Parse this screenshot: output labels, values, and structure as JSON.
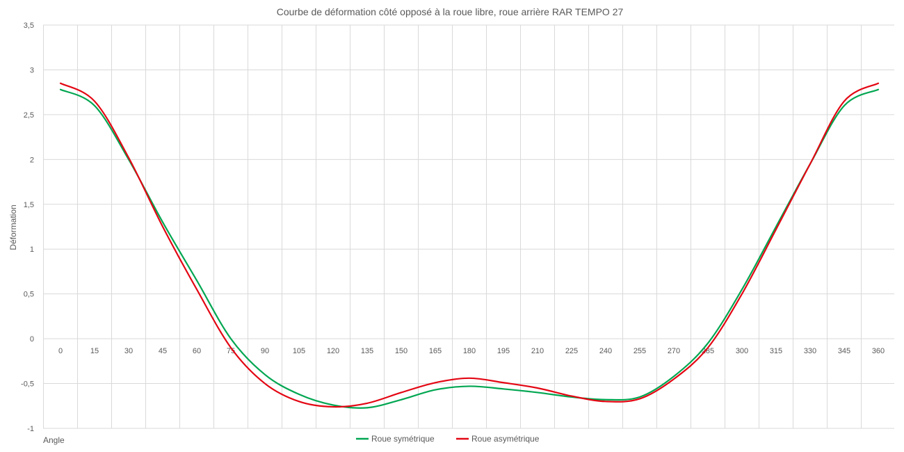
{
  "chart_data": {
    "type": "line",
    "title": "Courbe de déformation côté opposé à la roue libre, roue arrière RAR TEMPO 27",
    "xlabel": "Angle",
    "ylabel": "Déformation",
    "x": [
      0,
      15,
      30,
      45,
      60,
      75,
      90,
      105,
      120,
      135,
      150,
      165,
      180,
      195,
      210,
      225,
      240,
      255,
      270,
      285,
      300,
      315,
      330,
      345,
      360
    ],
    "x_tick_labels": [
      "0",
      "15",
      "30",
      "45",
      "60",
      "75",
      "90",
      "105",
      "120",
      "135",
      "150",
      "165",
      "180",
      "195",
      "210",
      "225",
      "240",
      "255",
      "270",
      "285",
      "300",
      "315",
      "330",
      "345",
      "360"
    ],
    "y_tick_labels": [
      "-1",
      "-0,5",
      "0",
      "0,5",
      "1",
      "1,5",
      "2",
      "2,5",
      "3",
      "3,5"
    ],
    "y_ticks": [
      -1,
      -0.5,
      0,
      0.5,
      1,
      1.5,
      2,
      2.5,
      3,
      3.5
    ],
    "ylim": [
      -1,
      3.5
    ],
    "grid": true,
    "legend_position": "bottom",
    "series": [
      {
        "name": "Roue symétrique",
        "color": "#00A651",
        "values": [
          2.78,
          2.6,
          2.0,
          1.3,
          0.65,
          0.0,
          -0.4,
          -0.62,
          -0.74,
          -0.77,
          -0.68,
          -0.57,
          -0.53,
          -0.56,
          -0.6,
          -0.65,
          -0.68,
          -0.65,
          -0.42,
          -0.05,
          0.55,
          1.25,
          1.95,
          2.6,
          2.78
        ]
      },
      {
        "name": "Roue asymétrique",
        "color": "#E30613",
        "values": [
          2.85,
          2.65,
          2.02,
          1.25,
          0.55,
          -0.1,
          -0.5,
          -0.7,
          -0.76,
          -0.72,
          -0.6,
          -0.49,
          -0.44,
          -0.49,
          -0.55,
          -0.64,
          -0.7,
          -0.67,
          -0.45,
          -0.1,
          0.5,
          1.22,
          1.95,
          2.65,
          2.85
        ]
      }
    ]
  }
}
